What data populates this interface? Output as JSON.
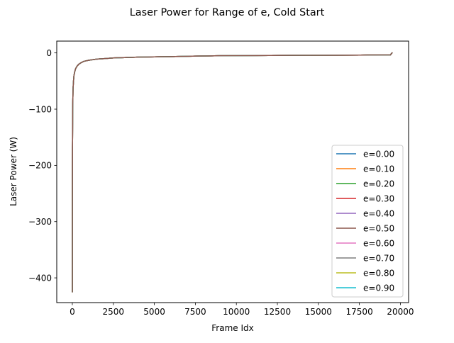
{
  "chart_data": {
    "type": "line",
    "title": "Laser Power for Range of e, Cold Start",
    "xlabel": "Frame Idx",
    "ylabel": "Laser Power (W)",
    "xlim": [
      -950,
      20500
    ],
    "ylim": [
      -444,
      21
    ],
    "x_ticks": [
      0,
      2500,
      5000,
      7500,
      10000,
      12500,
      15000,
      17500,
      20000
    ],
    "x_tick_labels": [
      "0",
      "2500",
      "5000",
      "7500",
      "10000",
      "12500",
      "15000",
      "17500",
      "20000"
    ],
    "y_ticks": [
      0,
      -100,
      -200,
      -300,
      -400
    ],
    "y_tick_labels": [
      "0",
      "−100",
      "−200",
      "−300",
      "−400"
    ],
    "grid": false,
    "legend_position": "lower-right",
    "series": [
      {
        "name": "e=0.00",
        "color": "#1f77b4"
      },
      {
        "name": "e=0.10",
        "color": "#ff7f0e"
      },
      {
        "name": "e=0.20",
        "color": "#2ca02c"
      },
      {
        "name": "e=0.30",
        "color": "#d62728"
      },
      {
        "name": "e=0.40",
        "color": "#9467bd"
      },
      {
        "name": "e=0.50",
        "color": "#8c564b"
      },
      {
        "name": "e=0.60",
        "color": "#e377c2"
      },
      {
        "name": "e=0.70",
        "color": "#7f7f7f"
      },
      {
        "name": "e=0.80",
        "color": "#bcbd22"
      },
      {
        "name": "e=0.90",
        "color": "#17becf"
      }
    ],
    "curve": {
      "x": [
        0,
        5,
        10,
        20,
        40,
        60,
        80,
        100,
        150,
        200,
        300,
        400,
        500,
        700,
        1000,
        1500,
        2000,
        2500,
        3000,
        4000,
        5000,
        6000,
        7000,
        8000,
        9000,
        10000,
        12000,
        14000,
        16000,
        18000,
        19400,
        19450,
        19500
      ],
      "y": [
        -425,
        -260,
        -170,
        -105,
        -68,
        -55,
        -47,
        -40,
        -33,
        -28,
        -23,
        -20,
        -18,
        -15,
        -13,
        -11,
        -10,
        -9,
        -8.5,
        -7.5,
        -7,
        -6.5,
        -6,
        -5.5,
        -5,
        -4.8,
        -4.5,
        -4.2,
        -4,
        -3.8,
        -3.6,
        -1,
        0
      ]
    },
    "visible_series": "e=0.50"
  }
}
